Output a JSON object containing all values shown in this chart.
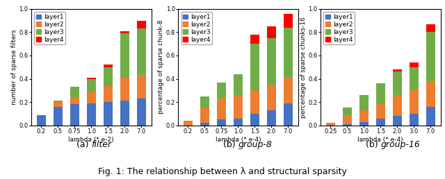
{
  "chart1": {
    "title_prefix": "(a) ",
    "title_italic": "filter",
    "ylabel": "number of sparse filters",
    "xlabel": "lambda (* e-2)",
    "xlabels": [
      "0.2",
      "0.5",
      "0.75",
      "1.0",
      "1.5",
      "2.0",
      "7.0"
    ],
    "ylim": [
      0,
      1.0
    ],
    "yticks": [
      0.0,
      0.2,
      0.4,
      0.6,
      0.8,
      1.0
    ],
    "layer1": [
      0.09,
      0.16,
      0.18,
      0.19,
      0.2,
      0.21,
      0.23
    ],
    "layer2": [
      0.0,
      0.04,
      0.06,
      0.1,
      0.14,
      0.2,
      0.2
    ],
    "layer3": [
      0.0,
      0.01,
      0.09,
      0.11,
      0.16,
      0.38,
      0.4
    ],
    "layer4": [
      0.0,
      0.0,
      0.0,
      0.01,
      0.02,
      0.02,
      0.07
    ]
  },
  "chart2": {
    "title_prefix": "(b) ",
    "title_italic": "group-8",
    "ylabel": "percentage of sparse chunk-8",
    "xlabel": "lambda (* e-4)",
    "xlabels": [
      "0.2",
      "0.5",
      "0.75",
      "1.0",
      "1.5",
      "2.0",
      "7.0"
    ],
    "ylim": [
      0,
      1.0
    ],
    "yticks": [
      0.0,
      0.2,
      0.4,
      0.6,
      0.8,
      1.0
    ],
    "layer1": [
      0.0,
      0.02,
      0.05,
      0.06,
      0.1,
      0.13,
      0.19
    ],
    "layer2": [
      0.04,
      0.13,
      0.18,
      0.2,
      0.2,
      0.22,
      0.22
    ],
    "layer3": [
      0.0,
      0.1,
      0.14,
      0.18,
      0.4,
      0.4,
      0.43
    ],
    "layer4": [
      0.0,
      0.0,
      0.0,
      0.0,
      0.08,
      0.1,
      0.12
    ]
  },
  "chart3": {
    "title_prefix": "(b) ",
    "title_italic": "group-16",
    "ylabel": "percentage of sparse chunks-16",
    "xlabel": "lambda (* e-4)",
    "xlabels": [
      "0.25",
      "0.5",
      "1.0",
      "1.5",
      "2.0",
      "3.0",
      "7.0"
    ],
    "ylim": [
      0,
      1.0
    ],
    "yticks": [
      0.0,
      0.2,
      0.4,
      0.6,
      0.8,
      1.0
    ],
    "layer1": [
      0.0,
      0.01,
      0.03,
      0.06,
      0.08,
      0.1,
      0.16
    ],
    "layer2": [
      0.02,
      0.08,
      0.1,
      0.13,
      0.18,
      0.21,
      0.22
    ],
    "layer3": [
      0.0,
      0.06,
      0.13,
      0.17,
      0.2,
      0.19,
      0.42
    ],
    "layer4": [
      0.0,
      0.0,
      0.0,
      0.0,
      0.02,
      0.04,
      0.07
    ]
  },
  "colors": [
    "#4472c4",
    "#ed7d31",
    "#70ad47",
    "#ff0000"
  ],
  "layer_labels": [
    "layer1",
    "layer2",
    "layer3",
    "layer4"
  ],
  "figure_caption_bold": "Fig. 1",
  "figure_caption_rest": ": The relationship between λ and structural sparsity",
  "title_fontsize": 9,
  "label_fontsize": 6.5,
  "tick_fontsize": 6,
  "legend_fontsize": 6.5,
  "caption_fontsize": 9
}
